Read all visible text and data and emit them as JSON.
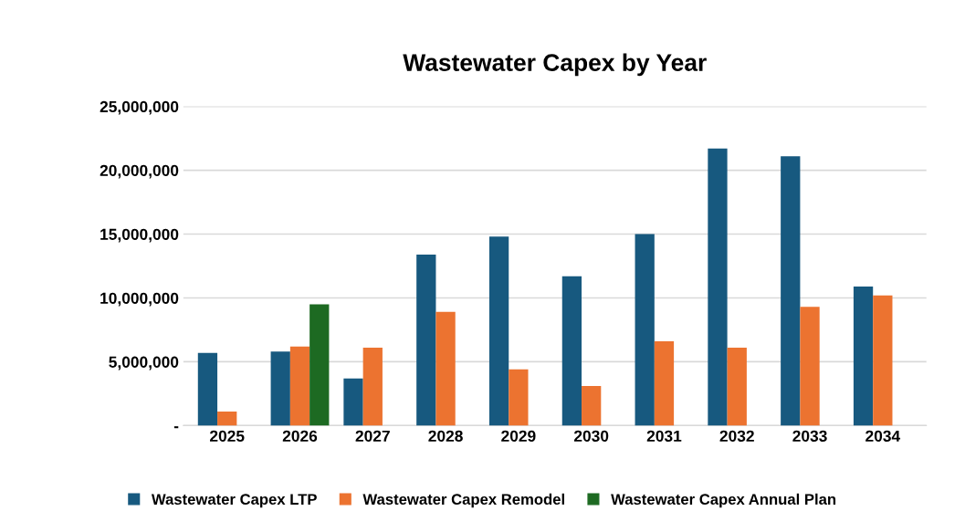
{
  "chart_data": {
    "type": "bar",
    "title": "Wastewater Capex by Year",
    "categories": [
      "2025",
      "2026",
      "2027",
      "2028",
      "2029",
      "2030",
      "2031",
      "2032",
      "2033",
      "2034"
    ],
    "series": [
      {
        "name": "Wastewater Capex LTP",
        "color": "#17597f",
        "values": [
          5700000,
          5800000,
          3700000,
          13400000,
          14800000,
          11700000,
          15000000,
          21700000,
          21100000,
          10900000
        ]
      },
      {
        "name": "Wastewater Capex Remodel",
        "color": "#ec7330",
        "values": [
          1100000,
          6200000,
          6100000,
          8900000,
          4400000,
          3100000,
          6600000,
          6100000,
          9300000,
          10200000
        ]
      },
      {
        "name": "Wastewater Capex Annual Plan",
        "color": "#1d6a22",
        "values": [
          null,
          9500000,
          null,
          null,
          null,
          null,
          null,
          null,
          null,
          null
        ]
      }
    ],
    "ylim": [
      0,
      25000000
    ],
    "yticks": [
      {
        "value": 0,
        "label": "-"
      },
      {
        "value": 5000000,
        "label": "5,000,000"
      },
      {
        "value": 10000000,
        "label": "10,000,000"
      },
      {
        "value": 15000000,
        "label": "15,000,000"
      },
      {
        "value": 20000000,
        "label": "20,000,000"
      },
      {
        "value": 25000000,
        "label": "25,000,000"
      }
    ],
    "grid": "y",
    "legend": "bottom"
  }
}
